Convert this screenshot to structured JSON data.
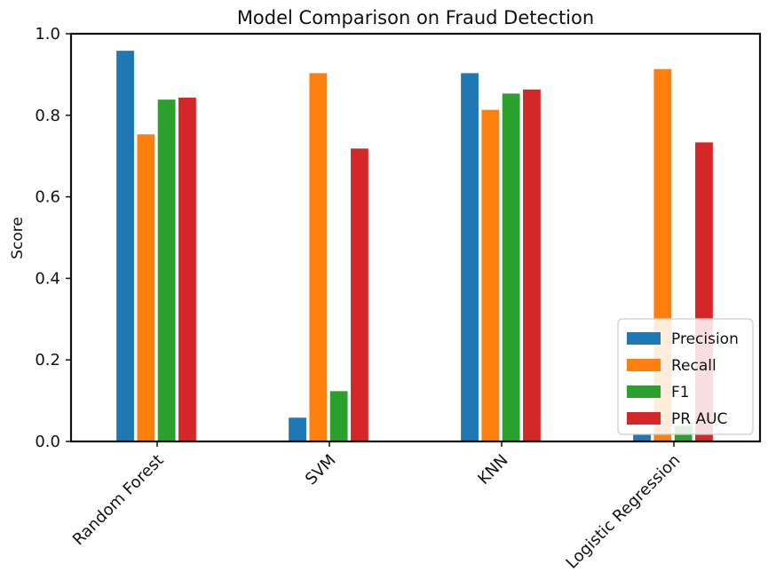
{
  "chart_data": {
    "type": "bar",
    "title": "Model Comparison on Fraud Detection",
    "xlabel": "",
    "ylabel": "Score",
    "ylim": [
      0,
      1.0
    ],
    "yticks": [
      "0.0",
      "0.2",
      "0.4",
      "0.6",
      "0.8",
      "1.0"
    ],
    "categories": [
      "Random Forest",
      "SVM",
      "KNN",
      "Logistic Regression"
    ],
    "series": [
      {
        "name": "Precision",
        "color": "#1f77b4",
        "values": [
          0.96,
          0.06,
          0.905,
          0.02
        ]
      },
      {
        "name": "Recall",
        "color": "#ff7f0e",
        "values": [
          0.755,
          0.905,
          0.815,
          0.915
        ]
      },
      {
        "name": "F1",
        "color": "#2ca02c",
        "values": [
          0.84,
          0.125,
          0.855,
          0.04
        ]
      },
      {
        "name": "PR AUC",
        "color": "#d62728",
        "values": [
          0.845,
          0.72,
          0.865,
          0.735
        ]
      }
    ],
    "legend": "bottom-right",
    "grid": false
  }
}
